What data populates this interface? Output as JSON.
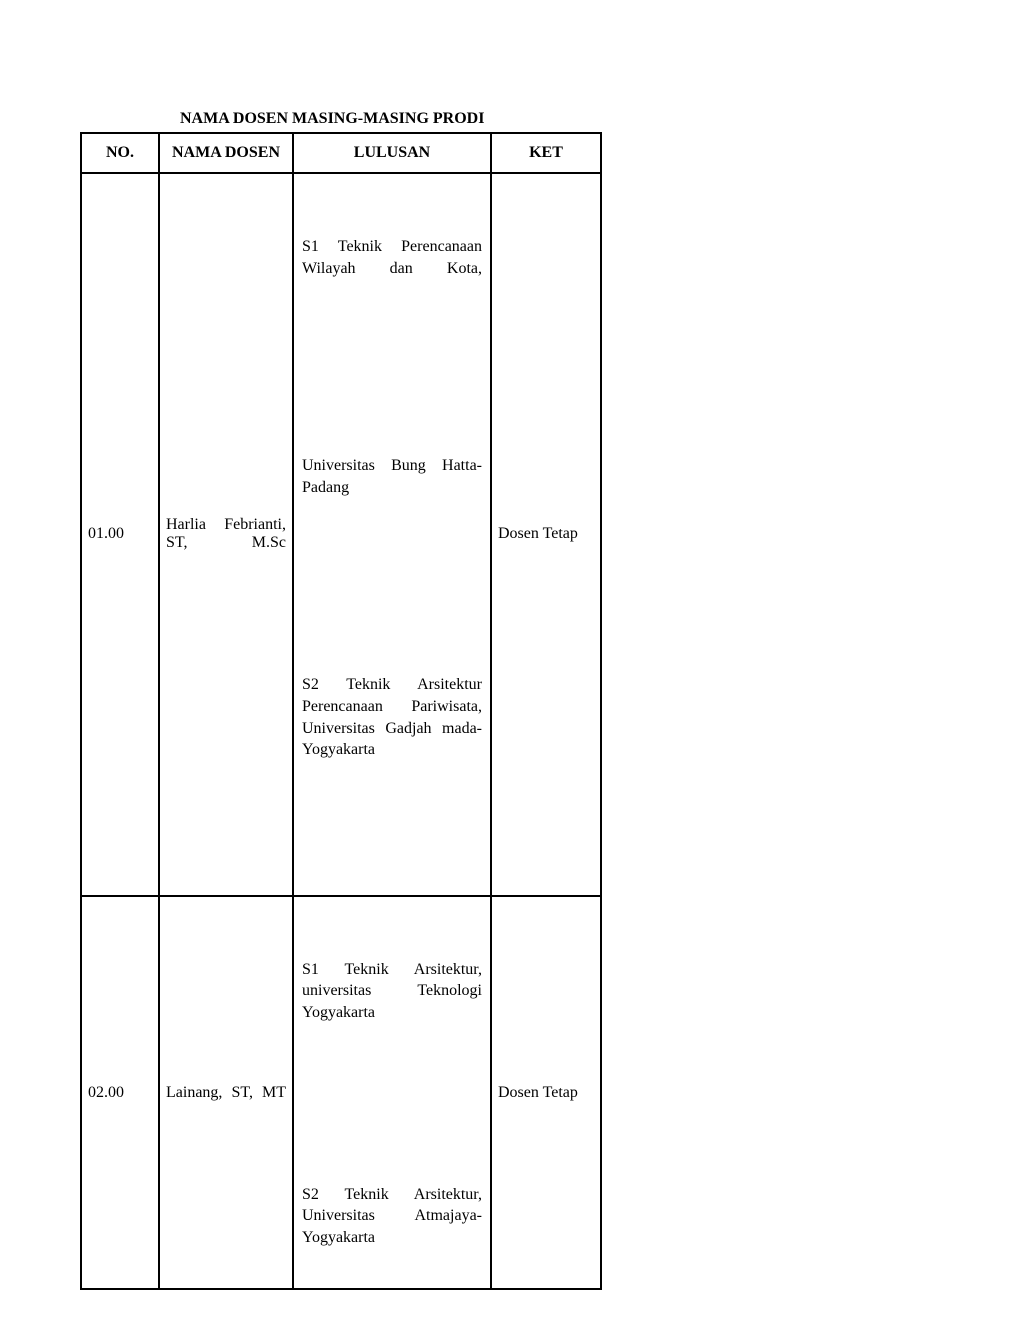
{
  "title": "NAMA DOSEN MASING-MASING PRODI",
  "columns": {
    "no": "NO.",
    "nama": "NAMA DOSEN",
    "lulusan": "LULUSAN",
    "ket": "KET"
  },
  "rows": [
    {
      "no": "01.00",
      "nama": "Harlia Febrianti, ST, M.Sc",
      "lulusan": [
        "S1 Teknik Perencanaan Wilayah dan Kota,",
        "Universitas Bung Hatta-Padang",
        "S2 Teknik Arsitektur Perencanaan Pariwisata, Universitas Gadjah mada-Yogyakarta"
      ],
      "ket": "Dosen Tetap"
    },
    {
      "no": "02.00",
      "nama": "Lainang, ST, MT",
      "lulusan": [
        "S1 Teknik Arsitektur, universitas Teknologi Yogyakarta",
        "S2 Teknik Arsitektur, Universitas Atmajaya-Yogyakarta"
      ],
      "ket": "Dosen Tetap"
    }
  ]
}
